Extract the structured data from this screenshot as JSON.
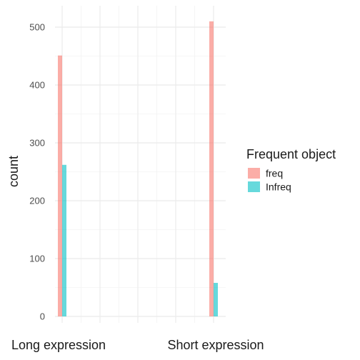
{
  "chart_data": {
    "type": "bar",
    "categories": [
      "Long expression",
      "Short expression"
    ],
    "series": [
      {
        "name": "freq",
        "values": [
          451,
          510
        ],
        "color": "#F8766D"
      },
      {
        "name": "Infreq",
        "values": [
          262,
          58
        ],
        "color": "#00BFC4"
      }
    ],
    "ylabel": "count",
    "xlabel": "",
    "ylim": [
      0,
      530
    ],
    "yticks": [
      0,
      100,
      200,
      300,
      400,
      500
    ],
    "legend_title": "Frequent object",
    "legend_position": "right",
    "grid": true,
    "bar_opacity": 0.6
  }
}
